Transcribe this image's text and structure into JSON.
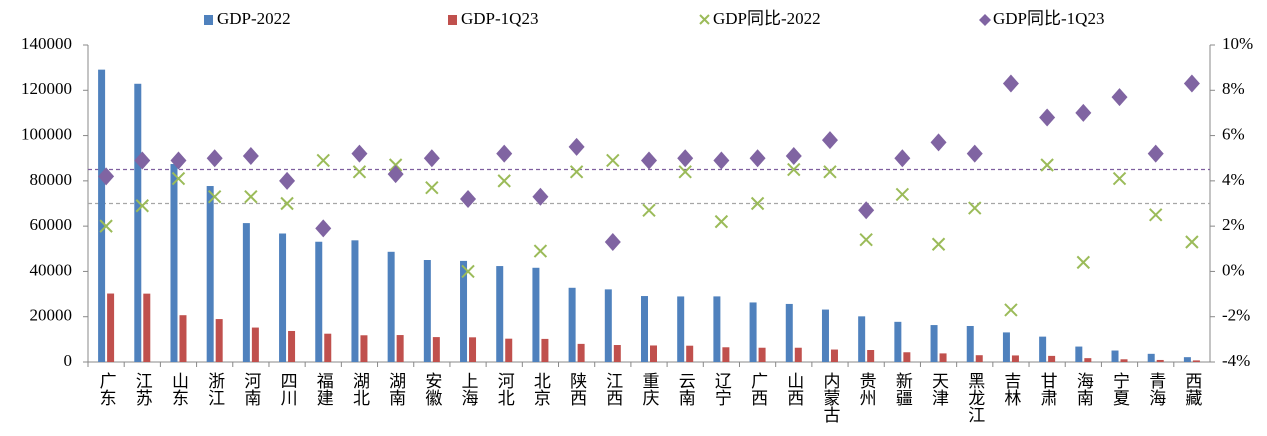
{
  "chart_data": {
    "type": "bar",
    "categories": [
      "广东",
      "江苏",
      "山东",
      "浙江",
      "河南",
      "四川",
      "福建",
      "湖北",
      "湖南",
      "安徽",
      "上海",
      "河北",
      "北京",
      "陕西",
      "江西",
      "重庆",
      "云南",
      "辽宁",
      "广西",
      "山西",
      "内蒙古",
      "贵州",
      "新疆",
      "天津",
      "黑龙江",
      "吉林",
      "甘肃",
      "海南",
      "宁夏",
      "青海",
      "西藏"
    ],
    "series": [
      {
        "name": "GDP-2022",
        "color": "#4f81bd",
        "type": "bar",
        "values": [
          129118,
          122876,
          87435,
          77715,
          61345,
          56750,
          53110,
          53735,
          48670,
          45045,
          44653,
          42370,
          41611,
          32773,
          32075,
          29129,
          28954,
          28975,
          26301,
          25643,
          23159,
          20165,
          17741,
          16311,
          15901,
          13070,
          11202,
          6818,
          5070,
          3610,
          2133
        ]
      },
      {
        "name": "GDP-1Q23",
        "color": "#c0504d",
        "type": "bar",
        "values": [
          30239,
          30190,
          20668,
          18960,
          15210,
          13700,
          12500,
          11800,
          11900,
          11000,
          10900,
          10300,
          10200,
          8000,
          7500,
          7300,
          7200,
          6500,
          6300,
          6300,
          5500,
          5300,
          4300,
          3800,
          3000,
          2900,
          2700,
          1700,
          1200,
          900,
          700
        ]
      },
      {
        "name": "GDP同比-2022",
        "color": "#9bbb59",
        "type": "scatter",
        "marker": "x",
        "axis": "y2",
        "values": [
          2.0,
          2.9,
          4.1,
          3.3,
          3.3,
          3.0,
          4.9,
          4.4,
          4.7,
          3.7,
          0.0,
          4.0,
          0.9,
          4.4,
          4.9,
          2.7,
          4.4,
          2.2,
          3.0,
          4.5,
          4.4,
          1.4,
          3.4,
          1.2,
          2.8,
          -1.7,
          4.7,
          0.4,
          4.1,
          2.5,
          1.3
        ]
      },
      {
        "name": "GDP同比-1Q23",
        "color": "#8064a2",
        "type": "scatter",
        "marker": "diamond",
        "axis": "y2",
        "values": [
          4.2,
          4.9,
          4.9,
          5.0,
          5.1,
          4.0,
          1.9,
          5.2,
          4.3,
          5.0,
          3.2,
          5.2,
          3.3,
          5.5,
          1.3,
          4.9,
          5.0,
          4.9,
          5.0,
          5.1,
          5.8,
          2.7,
          5.0,
          5.7,
          5.2,
          8.3,
          6.8,
          7.0,
          7.7,
          5.2,
          8.3
        ]
      }
    ],
    "reference_lines": [
      {
        "value": 4.5,
        "color": "#7f5f9f",
        "axis": "y2"
      },
      {
        "value": 3.0,
        "color": "#a6a6a6",
        "axis": "y2"
      }
    ],
    "ylim": [
      0,
      140000
    ],
    "yticks": [
      0,
      20000,
      40000,
      60000,
      80000,
      100000,
      120000,
      140000
    ],
    "y2lim": [
      -4,
      10
    ],
    "y2ticks": [
      {
        "value": -4,
        "label": "-4%"
      },
      {
        "value": -2,
        "label": "-2%"
      },
      {
        "value": 0,
        "label": "0%"
      },
      {
        "value": 2,
        "label": "2%"
      },
      {
        "value": 4,
        "label": "4%"
      },
      {
        "value": 6,
        "label": "6%"
      },
      {
        "value": 8,
        "label": "8%"
      },
      {
        "value": 10,
        "label": "10%"
      }
    ],
    "legend": "top"
  }
}
